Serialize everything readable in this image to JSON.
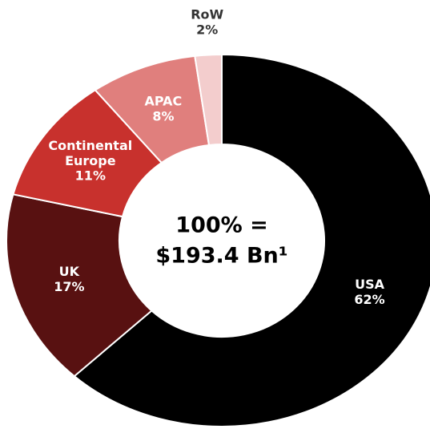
{
  "chart_data": {
    "type": "donut",
    "categories": [
      "USA",
      "UK",
      "Continental Europe",
      "APAC",
      "RoW"
    ],
    "values": [
      62,
      17,
      11,
      8,
      2
    ],
    "value_labels": [
      "62%",
      "17%",
      "11%",
      "8%",
      "2%"
    ],
    "colors": [
      "#000000",
      "#581111",
      "#c8312d",
      "#e07f7d",
      "#f3cdcd"
    ],
    "center_label": [
      "100% =",
      "$193.4 Bn¹"
    ]
  }
}
